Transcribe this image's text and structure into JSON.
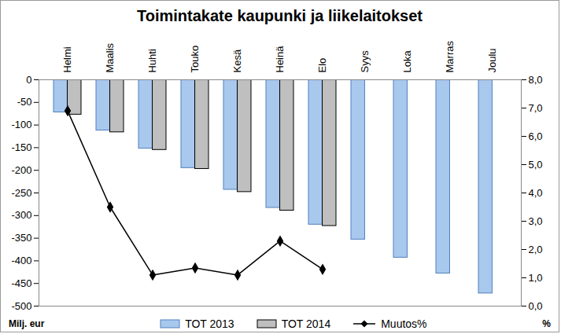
{
  "chart_data": {
    "type": "bar",
    "title": "Toimintakate kaupunki ja liikelaitokset",
    "categories": [
      "Helmi",
      "Maalis",
      "Huhti",
      "Touko",
      "Kesä",
      "Heinä",
      "Elo",
      "Syys",
      "Loka",
      "Marras",
      "Joulu"
    ],
    "series": [
      {
        "name": "TOT 2013",
        "type": "bar",
        "color": "#a9c8ee",
        "values": [
          -72,
          -112,
          -152,
          -195,
          -243,
          -283,
          -320,
          -353,
          -393,
          -428,
          -472
        ]
      },
      {
        "name": "TOT 2014",
        "type": "bar",
        "color": "#bfbfbf",
        "values": [
          -77,
          -116,
          -155,
          -197,
          -248,
          -289,
          -323,
          null,
          null,
          null,
          null
        ]
      },
      {
        "name": "Muutos%",
        "type": "line",
        "axis": "y2",
        "color": "#000000",
        "marker": "diamond",
        "values": [
          6.9,
          3.5,
          1.1,
          1.35,
          1.1,
          2.3,
          1.3,
          null,
          null,
          null,
          null
        ]
      }
    ],
    "ylabel": "Milj. eur",
    "y2label": "%",
    "ylim": [
      -500,
      0
    ],
    "yticks": [
      0,
      -50,
      -100,
      -150,
      -200,
      -250,
      -300,
      -350,
      -400,
      -450,
      -500
    ],
    "y2lim": [
      0,
      8
    ],
    "y2ticks": [
      {
        "value": 0,
        "label": "0,0"
      },
      {
        "value": 1,
        "label": "1,0"
      },
      {
        "value": 2,
        "label": "2,0"
      },
      {
        "value": 3,
        "label": "3,0"
      },
      {
        "value": 4,
        "label": "4,0"
      },
      {
        "value": 5,
        "label": "5,0"
      },
      {
        "value": 6,
        "label": "6,0"
      },
      {
        "value": 7,
        "label": "7,0"
      },
      {
        "value": 8,
        "label": "8,0"
      }
    ],
    "grid": false,
    "legend": "bottom"
  }
}
